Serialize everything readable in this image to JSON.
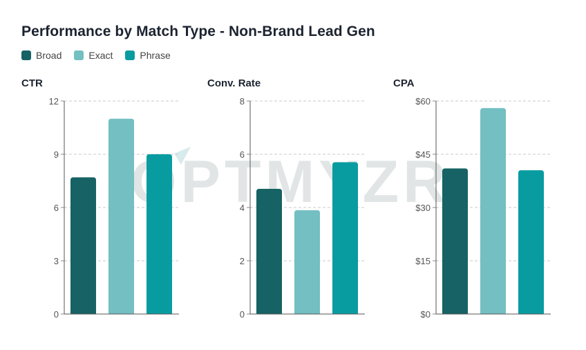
{
  "header": {
    "title": "Performance by Match Type - Non-Brand Lead Gen"
  },
  "legend": [
    {
      "label": "Broad",
      "color": "#166264"
    },
    {
      "label": "Exact",
      "color": "#73bfc2"
    },
    {
      "label": "Phrase",
      "color": "#089ca1"
    }
  ],
  "watermark": {
    "text": "OPTMYZR"
  },
  "chart_data": [
    {
      "type": "bar",
      "title": "CTR",
      "categories": [
        "Broad",
        "Exact",
        "Phrase"
      ],
      "values": [
        7.7,
        11.0,
        9.0
      ],
      "ylim": [
        0,
        12
      ],
      "ticks": [
        0,
        3,
        6,
        9,
        12
      ],
      "tick_labels": [
        "0",
        "3",
        "6",
        "9",
        "12"
      ],
      "grid": true
    },
    {
      "type": "bar",
      "title": "Conv. Rate",
      "categories": [
        "Broad",
        "Exact",
        "Phrase"
      ],
      "values": [
        4.7,
        3.9,
        5.7
      ],
      "ylim": [
        0,
        8
      ],
      "ticks": [
        0,
        2,
        4,
        6,
        8
      ],
      "tick_labels": [
        "0",
        "2",
        "4",
        "6",
        "8"
      ],
      "grid": true
    },
    {
      "type": "bar",
      "title": "CPA",
      "categories": [
        "Broad",
        "Exact",
        "Phrase"
      ],
      "values": [
        41,
        58,
        40.5
      ],
      "ylim": [
        0,
        60
      ],
      "ticks": [
        0,
        15,
        30,
        45,
        60
      ],
      "tick_labels": [
        "$0",
        "$15",
        "$30",
        "$45",
        "$60"
      ],
      "grid": true
    }
  ]
}
